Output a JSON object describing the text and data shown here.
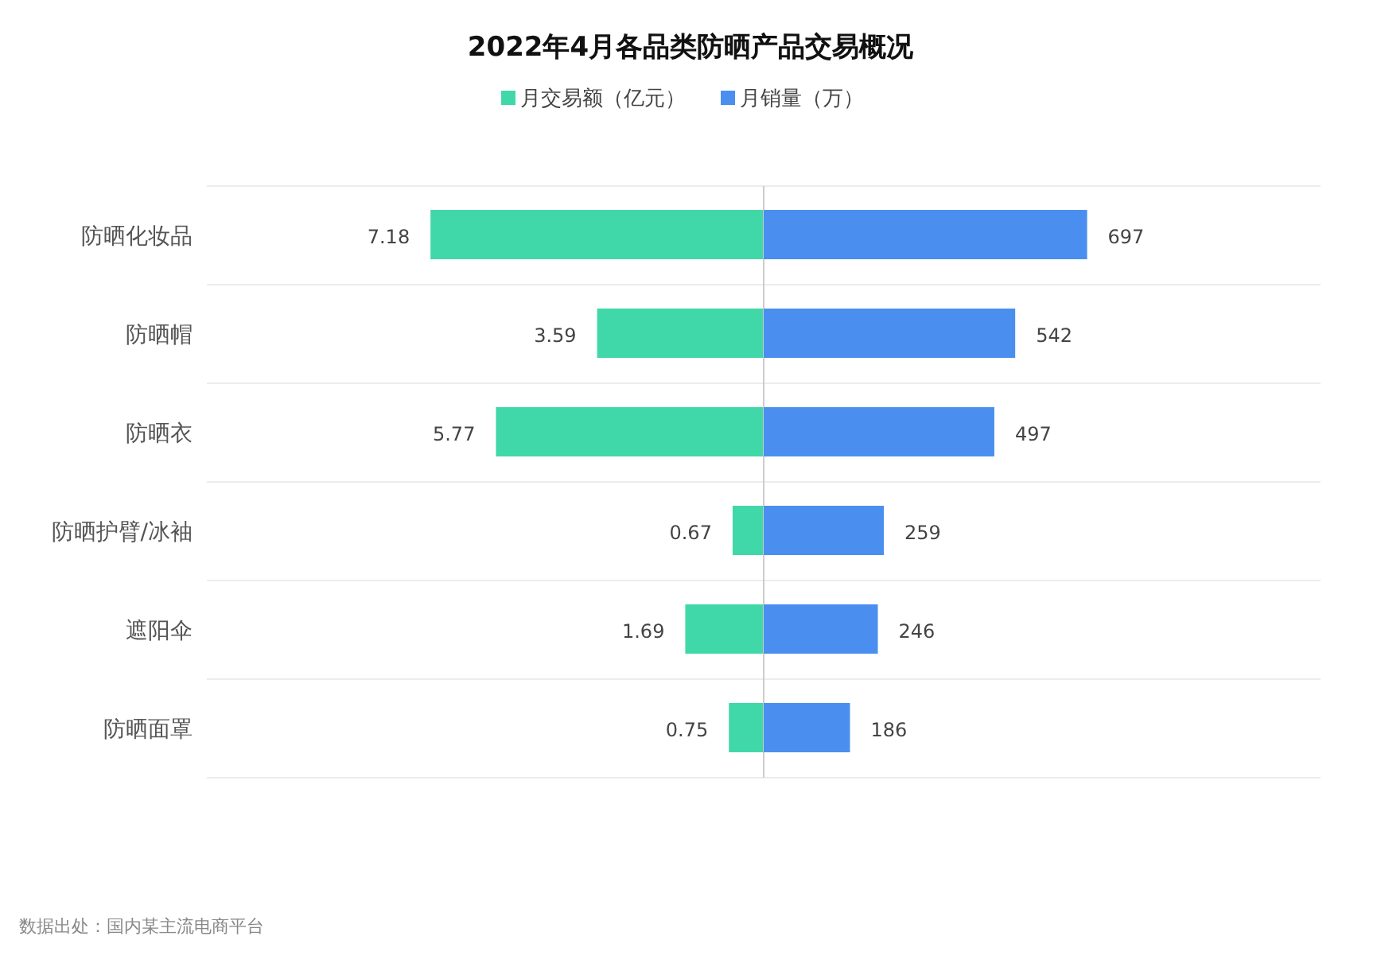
{
  "chart_data": [
    {
      "type": "bar",
      "orientation": "horizontal",
      "title": "2022年4月各品类防晒产品交易概况",
      "categories": [
        "防晒化妆品",
        "防晒帽",
        "防晒衣",
        "防晒护臂/冰袖",
        "遮阳伞",
        "防晒面罩"
      ],
      "series": [
        {
          "name": "月交易额（亿元）",
          "color": "#40d8a8",
          "values": [
            7.18,
            3.59,
            5.77,
            0.67,
            1.69,
            0.75
          ]
        }
      ],
      "xlim": [
        12,
        0
      ],
      "data_labels": true,
      "legend": "top",
      "grid": "y",
      "annotations": [
        "数据出处：国内某主流电商平台"
      ]
    },
    {
      "type": "bar",
      "orientation": "horizontal",
      "series": [
        {
          "name": "月销量（万）",
          "color": "#4a8ff0",
          "values": [
            697,
            542,
            497,
            259,
            246,
            186
          ]
        }
      ],
      "xlim": [
        0,
        1200
      ],
      "data_labels": true,
      "legend": "top",
      "grid": "y"
    }
  ]
}
